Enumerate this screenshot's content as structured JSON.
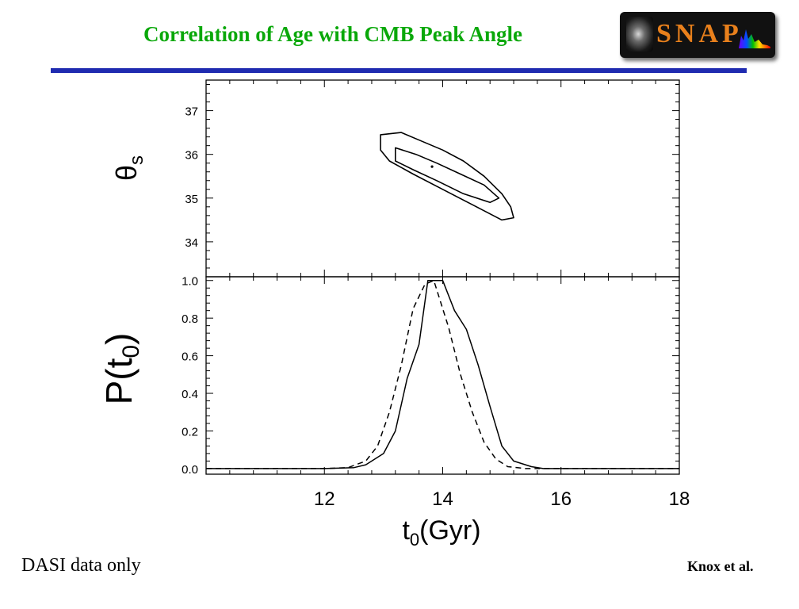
{
  "slide": {
    "title": "Correlation of Age with CMB Peak Angle",
    "left_note": "DASI data only",
    "right_note": "Knox et al.",
    "logo_text": "SNAP"
  },
  "colors": {
    "title": "#0aa80a",
    "rule": "#1f2bb0",
    "logo_bg": "#111111",
    "logo_text": "#e8801c"
  },
  "chart_data": {
    "type": "line",
    "shared_x": {
      "label_main": "t",
      "label_sub": "0",
      "label_rest": "(Gyr)",
      "range": [
        10,
        18
      ],
      "ticks": [
        12,
        14,
        16,
        18
      ],
      "tick_labels": [
        "12",
        "14",
        "16",
        "18"
      ]
    },
    "panels": [
      {
        "id": "top",
        "kind": "contour",
        "ylabel_main": "θ",
        "ylabel_sub": "s",
        "ylim": [
          33.2,
          37.7
        ],
        "yticks": [
          34,
          35,
          36,
          37
        ],
        "ytick_labels": [
          "34",
          "35",
          "36",
          "37"
        ],
        "contours": [
          {
            "level": "outer",
            "points": [
              [
                12.95,
                36.45
              ],
              [
                13.3,
                36.5
              ],
              [
                13.65,
                36.3
              ],
              [
                14.0,
                36.1
              ],
              [
                14.35,
                35.85
              ],
              [
                14.7,
                35.5
              ],
              [
                15.0,
                35.1
              ],
              [
                15.15,
                34.8
              ],
              [
                15.2,
                34.55
              ],
              [
                15.0,
                34.5
              ],
              [
                14.5,
                34.85
              ],
              [
                14.0,
                35.2
              ],
              [
                13.5,
                35.55
              ],
              [
                13.1,
                35.85
              ],
              [
                12.95,
                36.1
              ]
            ]
          },
          {
            "level": "inner",
            "points": [
              [
                13.2,
                36.15
              ],
              [
                13.55,
                36.0
              ],
              [
                13.9,
                35.8
              ],
              [
                14.3,
                35.55
              ],
              [
                14.7,
                35.3
              ],
              [
                14.95,
                35.0
              ],
              [
                14.8,
                34.9
              ],
              [
                14.35,
                35.1
              ],
              [
                13.9,
                35.4
              ],
              [
                13.5,
                35.65
              ],
              [
                13.2,
                35.85
              ]
            ]
          }
        ],
        "best_fit": [
          13.82,
          35.72
        ]
      },
      {
        "id": "bottom",
        "kind": "line",
        "ylabel_main": "P(t",
        "ylabel_sub": "0",
        "ylabel_rest": ")",
        "ylim": [
          -0.03,
          1.02
        ],
        "yticks": [
          0.0,
          0.2,
          0.4,
          0.6,
          0.8,
          1.0
        ],
        "ytick_labels": [
          "0.0",
          "0.2",
          "0.4",
          "0.6",
          "0.8",
          "1.0"
        ],
        "series": [
          {
            "style": "solid",
            "x": [
              10.0,
              12.0,
              12.5,
              12.7,
              13.0,
              13.2,
              13.4,
              13.6,
              13.75,
              14.0,
              14.2,
              14.4,
              14.6,
              14.8,
              15.0,
              15.2,
              15.5,
              15.7,
              16.0,
              18.0
            ],
            "y": [
              0.0,
              0.0,
              0.005,
              0.02,
              0.08,
              0.2,
              0.48,
              0.66,
              1.0,
              1.0,
              0.84,
              0.74,
              0.55,
              0.33,
              0.12,
              0.04,
              0.01,
              0.0,
              0.0,
              0.0
            ]
          },
          {
            "style": "dashed",
            "x": [
              10.0,
              12.0,
              12.4,
              12.7,
              12.9,
              13.1,
              13.3,
              13.5,
              13.7,
              13.85,
              14.0,
              14.1,
              14.3,
              14.5,
              14.7,
              14.9,
              15.1,
              15.4,
              15.6,
              16.0,
              18.0
            ],
            "y": [
              0.0,
              0.0,
              0.005,
              0.04,
              0.12,
              0.3,
              0.55,
              0.85,
              0.98,
              1.0,
              0.85,
              0.75,
              0.5,
              0.3,
              0.14,
              0.05,
              0.01,
              0.0,
              0.0,
              0.0,
              0.0
            ]
          }
        ]
      }
    ]
  }
}
